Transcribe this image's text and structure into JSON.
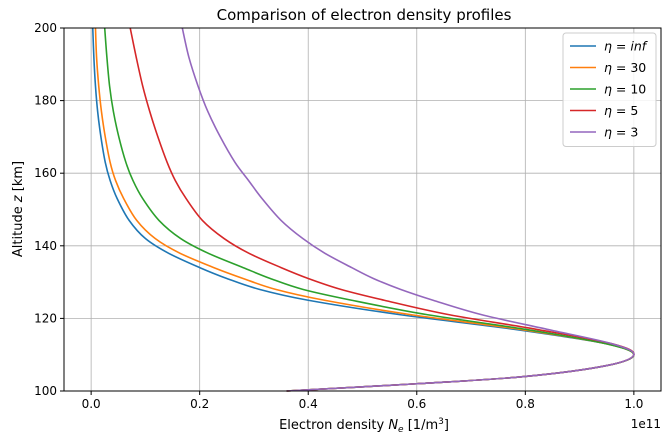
{
  "chart_data": {
    "type": "line",
    "title": "Comparison of electron density profiles",
    "xlabel": "Electron density N_e [1/m³]",
    "xlabel_parts": {
      "main": "Electron density ",
      "var": "N",
      "sub": "e",
      "unit": " [1/m",
      "sup": "3",
      "close": "]"
    },
    "ylabel": "Altitude z [km]",
    "ylabel_parts": {
      "main": "Altitude ",
      "var": "z",
      "unit": " [km]"
    },
    "x_offset_label": "1e11",
    "xlim": [
      -0.05,
      1.05
    ],
    "ylim": [
      100,
      200
    ],
    "x_ticks": [
      0.0,
      0.2,
      0.4,
      0.6,
      0.8,
      1.0
    ],
    "x_tick_labels": [
      "0.0",
      "0.2",
      "0.4",
      "0.6",
      "0.8",
      "1.0"
    ],
    "y_ticks": [
      100,
      120,
      140,
      160,
      180,
      200
    ],
    "y_tick_labels": [
      "100",
      "120",
      "140",
      "160",
      "180",
      "200"
    ],
    "grid": true,
    "legend_position": "top-right",
    "series": [
      {
        "name": "η = inf",
        "label_var": "η = ",
        "label_val": "inf",
        "italic_val": true,
        "color": "#1f77b4",
        "x": [
          0.36,
          0.6,
          0.8,
          0.95,
          1.0,
          0.95,
          0.78,
          0.57,
          0.4,
          0.31,
          0.25,
          0.2,
          0.142,
          0.1,
          0.07,
          0.048,
          0.035,
          0.026,
          0.018,
          0.012,
          0.008,
          0.005,
          0.003
        ],
        "y": [
          100,
          102,
          104,
          107,
          110,
          113,
          117,
          121,
          125,
          128,
          131,
          134,
          138,
          142,
          147,
          153,
          158,
          163,
          170,
          177,
          184,
          192,
          200
        ]
      },
      {
        "name": "η = 30",
        "label_var": "η = ",
        "label_val": "30",
        "italic_val": false,
        "color": "#ff7f0e",
        "x": [
          0.36,
          0.6,
          0.8,
          0.95,
          1.0,
          0.95,
          0.79,
          0.59,
          0.43,
          0.34,
          0.28,
          0.226,
          0.163,
          0.118,
          0.084,
          0.06,
          0.045,
          0.035,
          0.026,
          0.019,
          0.014,
          0.01,
          0.008
        ],
        "y": [
          100,
          102,
          104,
          107,
          110,
          113,
          117,
          121,
          125,
          128,
          131,
          134,
          138,
          142,
          147,
          153,
          158,
          163,
          170,
          177,
          184,
          192,
          200
        ]
      },
      {
        "name": "η = 10",
        "label_var": "η = ",
        "label_val": "10",
        "italic_val": false,
        "color": "#2ca02c",
        "x": [
          0.36,
          0.6,
          0.8,
          0.95,
          1.0,
          0.95,
          0.8,
          0.62,
          0.48,
          0.39,
          0.33,
          0.28,
          0.215,
          0.165,
          0.125,
          0.095,
          0.077,
          0.064,
          0.051,
          0.041,
          0.034,
          0.029,
          0.025
        ],
        "y": [
          100,
          102,
          104,
          107,
          110,
          113,
          117,
          121,
          125,
          128,
          131,
          134,
          138,
          142,
          147,
          153,
          158,
          163,
          170,
          177,
          184,
          192,
          200
        ]
      },
      {
        "name": "η = 5",
        "label_var": "η = ",
        "label_val": "5",
        "italic_val": false,
        "color": "#d62728",
        "x": [
          0.36,
          0.6,
          0.8,
          0.95,
          1.0,
          0.96,
          0.82,
          0.66,
          0.54,
          0.46,
          0.4,
          0.35,
          0.29,
          0.245,
          0.205,
          0.175,
          0.155,
          0.14,
          0.123,
          0.108,
          0.095,
          0.083,
          0.072
        ],
        "y": [
          100,
          102,
          104,
          107,
          110,
          113,
          117,
          121,
          125,
          128,
          131,
          134,
          138,
          142,
          147,
          153,
          158,
          163,
          170,
          177,
          184,
          192,
          200
        ]
      },
      {
        "name": "η = 3",
        "label_var": "η = ",
        "label_val": "3",
        "italic_val": false,
        "color": "#9467bd",
        "x": [
          0.36,
          0.6,
          0.8,
          0.95,
          1.0,
          0.96,
          0.84,
          0.72,
          0.63,
          0.57,
          0.52,
          0.48,
          0.43,
          0.39,
          0.35,
          0.315,
          0.29,
          0.265,
          0.238,
          0.215,
          0.197,
          0.18,
          0.168
        ],
        "y": [
          100,
          102,
          104,
          107,
          110,
          113,
          117,
          121,
          125,
          128,
          131,
          134,
          138,
          142,
          147,
          153,
          158,
          163,
          170,
          177,
          184,
          192,
          200
        ]
      }
    ]
  }
}
